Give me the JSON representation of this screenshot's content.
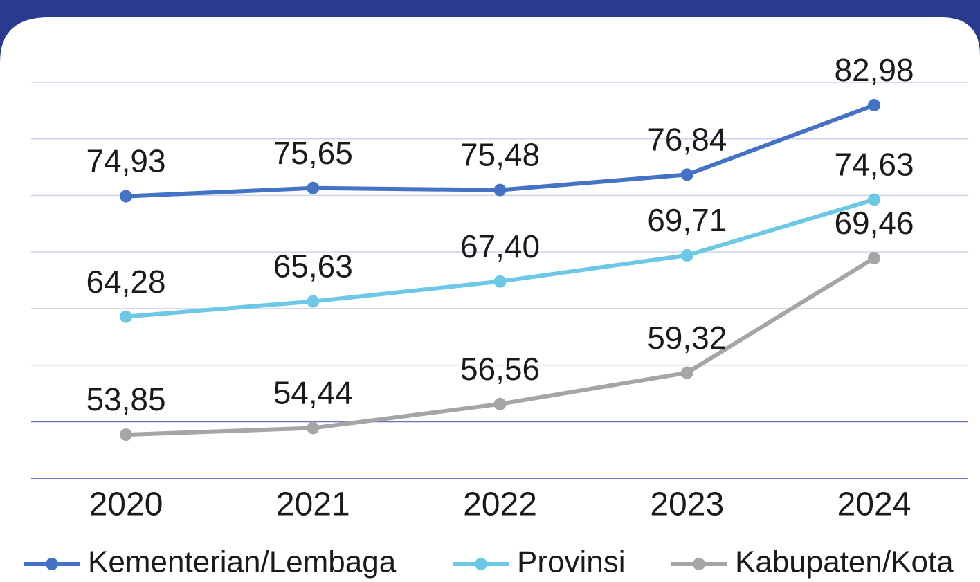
{
  "chart_data": {
    "type": "line",
    "categories": [
      "2020",
      "2021",
      "2022",
      "2023",
      "2024"
    ],
    "series": [
      {
        "name": "Kementerian/Lembaga",
        "color": "#4472c4",
        "values": [
          74.93,
          75.65,
          75.48,
          76.84,
          82.98
        ],
        "value_labels": [
          "74,93",
          "75,65",
          "75,48",
          "76,84",
          "82,98"
        ]
      },
      {
        "name": "Provinsi",
        "color": "#6dc8e6",
        "values": [
          64.28,
          65.63,
          67.4,
          69.71,
          74.63
        ],
        "value_labels": [
          "64,28",
          "65,63",
          "67,40",
          "69,71",
          "74,63"
        ]
      },
      {
        "name": "Kabupaten/Kota",
        "color": "#a5a5a5",
        "values": [
          53.85,
          54.44,
          56.56,
          59.32,
          69.46
        ],
        "value_labels": [
          "53,85",
          "54,44",
          "56,56",
          "59,32",
          "69,46"
        ]
      }
    ],
    "ylim": [
      50,
      85
    ],
    "yticks": [
      50,
      55,
      60,
      65,
      70,
      75,
      80,
      85
    ],
    "grid": true,
    "legend": "bottom"
  }
}
